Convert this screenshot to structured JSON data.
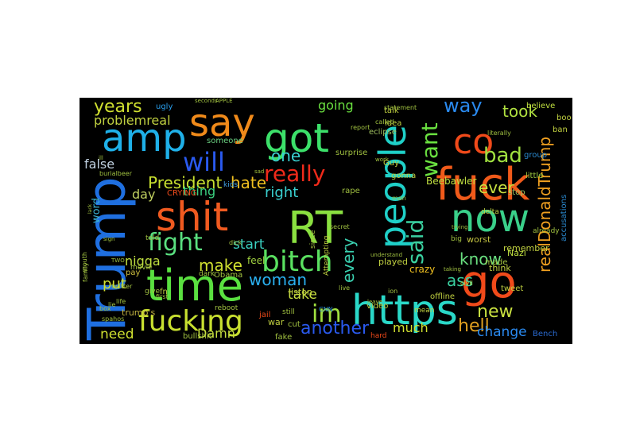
{
  "word_cloud": {
    "words": [
      {
        "text": "Trump",
        "color": "#1f6fe0"
      },
      {
        "text": "amp",
        "color": "#1fb0e8"
      },
      {
        "text": "say",
        "color": "#f08a1a"
      },
      {
        "text": "got",
        "color": "#3ce06a"
      },
      {
        "text": "people",
        "color": "#1fd0c8"
      },
      {
        "text": "co",
        "color": "#f04a1a"
      },
      {
        "text": "fuck",
        "color": "#f05a1a"
      },
      {
        "text": "now",
        "color": "#3ad08a"
      },
      {
        "text": "go",
        "color": "#f04a1a"
      },
      {
        "text": "https",
        "color": "#2ad8c8"
      },
      {
        "text": "time",
        "color": "#5ae040"
      },
      {
        "text": "shit",
        "color": "#f05a20"
      },
      {
        "text": "RT",
        "color": "#8ae040"
      },
      {
        "text": "bitch",
        "color": "#5ae060"
      },
      {
        "text": "fucking",
        "color": "#c8e030"
      },
      {
        "text": "will",
        "color": "#2a5af0"
      },
      {
        "text": "fight",
        "color": "#5ae080"
      },
      {
        "text": "really",
        "color": "#f02a1a"
      },
      {
        "text": "President",
        "color": "#c8e030"
      },
      {
        "text": "hate",
        "color": "#f0c020"
      },
      {
        "text": "said",
        "color": "#3ad0a0"
      },
      {
        "text": "want",
        "color": "#6ae040"
      },
      {
        "text": "bad",
        "color": "#a0e040"
      },
      {
        "text": "realDonaldTrump",
        "color": "#f0a020"
      },
      {
        "text": "years",
        "color": "#d0e030"
      },
      {
        "text": "one",
        "color": "#3ad0d0"
      },
      {
        "text": "way",
        "color": "#2a8af0"
      },
      {
        "text": "took",
        "color": "#b0e040"
      },
      {
        "text": "im",
        "color": "#a0e040"
      },
      {
        "text": "woman",
        "color": "#2ab0f0"
      },
      {
        "text": "another",
        "color": "#2a5af0"
      },
      {
        "text": "make",
        "color": "#d0e030"
      },
      {
        "text": "hell",
        "color": "#e0a020"
      },
      {
        "text": "new",
        "color": "#c8e040"
      },
      {
        "text": "change",
        "color": "#2a8af0"
      },
      {
        "text": "know",
        "color": "#6ae080"
      },
      {
        "text": "ass",
        "color": "#3ad0a0"
      },
      {
        "text": "every",
        "color": "#3ad0b0"
      },
      {
        "text": "ever",
        "color": "#c8e040"
      },
      {
        "text": "right",
        "color": "#3ad0d0"
      },
      {
        "text": "false",
        "color": "#c0d0e0"
      },
      {
        "text": "start",
        "color": "#3ad0c0"
      },
      {
        "text": "put",
        "color": "#d0e030"
      },
      {
        "text": "need",
        "color": "#d0e030"
      },
      {
        "text": "take",
        "color": "#c8e040"
      },
      {
        "text": "Damn",
        "color": "#c8e040"
      },
      {
        "text": "much",
        "color": "#d0e030"
      },
      {
        "text": "going",
        "color": "#6ae040"
      },
      {
        "text": "problemreal",
        "color": "#c0d040"
      },
      {
        "text": "nigga",
        "color": "#c0e040"
      },
      {
        "text": "day",
        "color": "#c0d060"
      },
      {
        "text": "thing",
        "color": "#3ad080"
      },
      {
        "text": "word",
        "color": "#3ab0d0"
      },
      {
        "text": "bullshit",
        "color": "#a0c040"
      },
      {
        "text": "trump's",
        "color": "#c0b040"
      },
      {
        "text": "pay",
        "color": "#d0c040"
      },
      {
        "text": "ugly",
        "color": "#2aa0f0"
      },
      {
        "text": "someone",
        "color": "#6ad080"
      },
      {
        "text": "Beebawler",
        "color": "#c0e040"
      },
      {
        "text": "crazy",
        "color": "#f0c020"
      },
      {
        "text": "played",
        "color": "#c0d040"
      },
      {
        "text": "worst",
        "color": "#c0c040"
      },
      {
        "text": "remember",
        "color": "#c0d040"
      },
      {
        "text": "accusations",
        "color": "#2a8ad0"
      },
      {
        "text": "think",
        "color": "#c0d040"
      },
      {
        "text": "Nazi",
        "color": "#c0e040"
      },
      {
        "text": "believe",
        "color": "#c0e040"
      },
      {
        "text": "feel",
        "color": "#a0d040"
      },
      {
        "text": "kids",
        "color": "#40a0e0"
      },
      {
        "text": "listen",
        "color": "#c0d040"
      },
      {
        "text": "video",
        "color": "#c0d040"
      },
      {
        "text": "little",
        "color": "#a0d040"
      },
      {
        "text": "stop",
        "color": "#a0c060"
      },
      {
        "text": "fake",
        "color": "#a0c040"
      },
      {
        "text": "war",
        "color": "#c0d040"
      },
      {
        "text": "CRYING",
        "color": "#f04a1a"
      },
      {
        "text": "made",
        "color": "#a0c040"
      },
      {
        "text": "cut",
        "color": "#a0c040"
      },
      {
        "text": "talk",
        "color": "#c0d040"
      },
      {
        "text": "idea",
        "color": "#c0d040"
      },
      {
        "text": "eclipse",
        "color": "#a0c060"
      },
      {
        "text": "Guy",
        "color": "#c0d040"
      },
      {
        "text": "boo",
        "color": "#c0d040"
      },
      {
        "text": "ban",
        "color": "#c0d040"
      },
      {
        "text": "group",
        "color": "#2a8ad0"
      },
      {
        "text": "gonna",
        "color": "#c0d040"
      },
      {
        "text": "offline",
        "color": "#c0d040"
      },
      {
        "text": "tweet",
        "color": "#c0d040"
      },
      {
        "text": "rape",
        "color": "#a0c040"
      },
      {
        "text": "jail",
        "color": "#f04a1a"
      },
      {
        "text": "Obama",
        "color": "#a0c040"
      },
      {
        "text": "told",
        "color": "#a0c040"
      },
      {
        "text": "give",
        "color": "#a0c040"
      },
      {
        "text": "movie",
        "color": "#a0c040"
      },
      {
        "text": "statement",
        "color": "#a0c040"
      },
      {
        "text": "literally",
        "color": "#a0c040"
      },
      {
        "text": "surprise",
        "color": "#a0c040"
      },
      {
        "text": "delta",
        "color": "#c0d040"
      },
      {
        "text": "civil",
        "color": "#c0d040"
      },
      {
        "text": "Attempting",
        "color": "#c0d040"
      },
      {
        "text": "big",
        "color": "#a0c040"
      },
      {
        "text": "already",
        "color": "#a0c040"
      },
      {
        "text": "mean",
        "color": "#c0d040"
      },
      {
        "text": "hard",
        "color": "#f04a1a"
      },
      {
        "text": "Bench",
        "color": "#2a6ad0"
      },
      {
        "text": "dark",
        "color": "#a0c040"
      },
      {
        "text": "reboot",
        "color": "#a0c040"
      },
      {
        "text": "since",
        "color": "#a0c040"
      },
      {
        "text": "still",
        "color": "#a0c040"
      },
      {
        "text": "secret",
        "color": "#a0c040"
      },
      {
        "text": "APPLE",
        "color": "#a0c040"
      },
      {
        "text": "seconds",
        "color": "#a0c040"
      },
      {
        "text": "dick",
        "color": "#a0c040"
      },
      {
        "text": "mouth",
        "color": "#a0c040"
      },
      {
        "text": "family",
        "color": "#a0c040"
      },
      {
        "text": "twitter",
        "color": "#a0c040"
      },
      {
        "text": "box",
        "color": "#a0c040"
      },
      {
        "text": "life",
        "color": "#a0c040"
      },
      {
        "text": "lie",
        "color": "#a0c040"
      },
      {
        "text": "ion",
        "color": "#a0c040"
      },
      {
        "text": "live",
        "color": "#a0c040"
      },
      {
        "text": "first",
        "color": "#a0c040"
      },
      {
        "text": "sad",
        "color": "#a0c040"
      },
      {
        "text": "called",
        "color": "#a0c040"
      },
      {
        "text": "report",
        "color": "#a0c040"
      },
      {
        "text": "work",
        "color": "#a0c040"
      },
      {
        "text": "CNN",
        "color": "#2a8ad0"
      },
      {
        "text": "burialbeer",
        "color": "#a0c040"
      },
      {
        "text": "spahos",
        "color": "#a0c040"
      },
      {
        "text": "man",
        "color": "#a0c040"
      },
      {
        "text": "fn",
        "color": "#c0d040"
      },
      {
        "text": "ill",
        "color": "#a0c040"
      },
      {
        "text": "TWO",
        "color": "#a0c040"
      },
      {
        "text": "lack",
        "color": "#a0c040"
      },
      {
        "text": "sign",
        "color": "#a0c040"
      },
      {
        "text": "leave",
        "color": "#a0c040"
      },
      {
        "text": "understand",
        "color": "#a0c040"
      },
      {
        "text": "trying",
        "color": "#a0c040"
      },
      {
        "text": "taking",
        "color": "#a0c040"
      },
      {
        "text": "back",
        "color": "#a0c040"
      }
    ]
  }
}
